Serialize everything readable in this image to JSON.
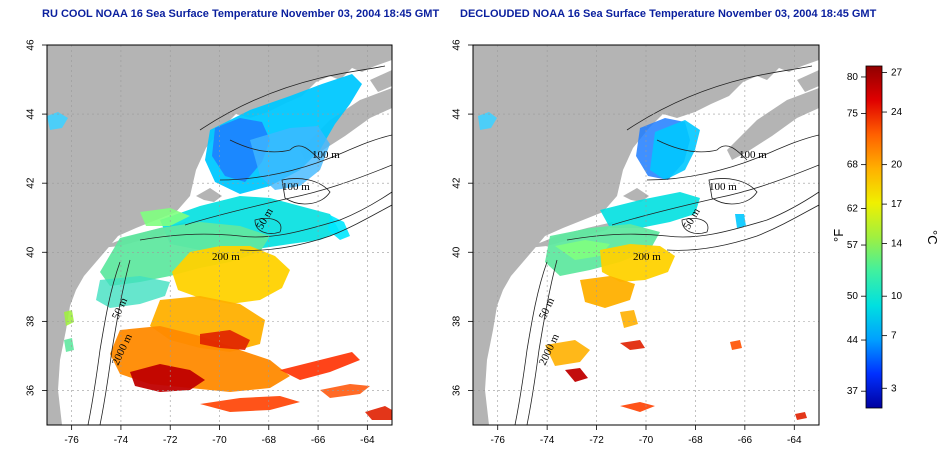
{
  "panels": [
    {
      "title": "RU COOL NOAA 16 Sea Surface Temperature November 03, 2004 18:45 GMT",
      "contour_labels": [
        "100 m",
        "100 m",
        "50 m",
        "200 m",
        "50 m",
        "2000 m"
      ]
    },
    {
      "title": "DECLOUDED NOAA 16 Sea Surface Temperature November 03, 2004 18:45 GMT",
      "contour_labels": [
        "100 m",
        "100 m",
        "50 m",
        "200 m",
        "50 m",
        "2000 m"
      ]
    }
  ],
  "axes": {
    "x_ticks": [
      "-76",
      "-74",
      "-72",
      "-70",
      "-68",
      "-66",
      "-64"
    ],
    "y_ticks": [
      "46",
      "44",
      "42",
      "40",
      "38",
      "36"
    ],
    "x_range": [
      -77,
      -63
    ],
    "y_range": [
      35,
      46
    ]
  },
  "colorbar": {
    "fahrenheit_ticks": [
      "80",
      "75",
      "68",
      "62",
      "57",
      "50",
      "44",
      "37"
    ],
    "celsius_ticks": [
      "27",
      "24",
      "20",
      "17",
      "14",
      "10",
      "7",
      "3"
    ],
    "fahrenheit_label": "°F",
    "celsius_label": "°C",
    "colors": [
      "#0000a0",
      "#0030ff",
      "#00a0ff",
      "#00e0e0",
      "#40f0a0",
      "#a0f040",
      "#f0f000",
      "#ffb000",
      "#ff6000",
      "#e00000",
      "#900000"
    ]
  },
  "colors": {
    "land": "#b4b4b4",
    "grid": "#9a9a9a",
    "title": "#0a1f9e"
  }
}
